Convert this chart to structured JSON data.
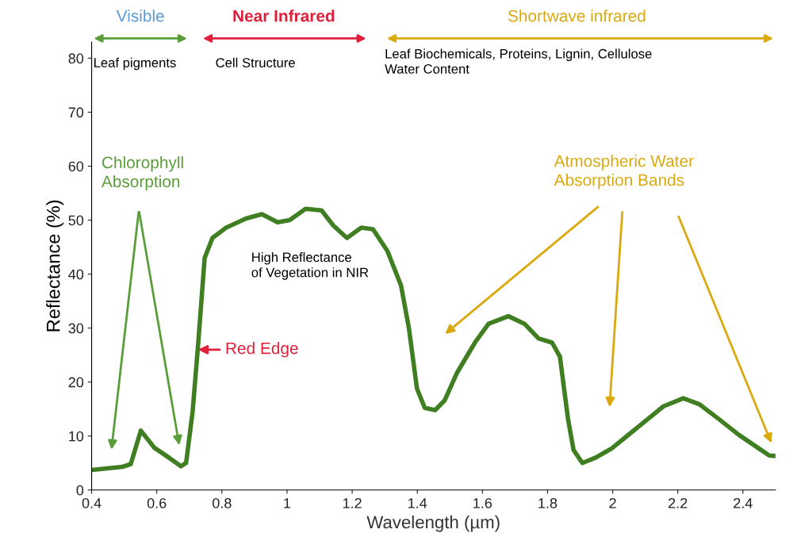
{
  "chart_data": {
    "type": "line",
    "xlabel": "Wavelength (µm)",
    "ylabel": "Reflectance (%)",
    "xlim": [
      0.4,
      2.5
    ],
    "ylim": [
      0,
      83
    ],
    "xticks": [
      0.4,
      0.6,
      0.8,
      1,
      1.2,
      1.4,
      1.6,
      1.8,
      2,
      2.2,
      2.4
    ],
    "yticks": [
      0,
      10,
      20,
      30,
      40,
      50,
      60,
      70,
      80
    ],
    "grid": false,
    "legend": false,
    "marker": "none",
    "line_style": "solid",
    "x": [
      0.4,
      0.495,
      0.52,
      0.551,
      0.593,
      0.63,
      0.674,
      0.69,
      0.71,
      0.727,
      0.747,
      0.771,
      0.813,
      0.874,
      0.923,
      0.971,
      1.008,
      1.057,
      1.106,
      1.142,
      1.184,
      1.228,
      1.264,
      1.308,
      1.35,
      1.374,
      1.399,
      1.423,
      1.455,
      1.484,
      1.521,
      1.577,
      1.619,
      1.68,
      1.729,
      1.772,
      1.814,
      1.838,
      1.863,
      1.88,
      1.907,
      1.948,
      1.997,
      2.046,
      2.107,
      2.156,
      2.217,
      2.266,
      2.327,
      2.388,
      2.449,
      2.481,
      2.5
    ],
    "series": [
      {
        "color": "#3f7f22",
        "values": [
          3.7,
          4.3,
          4.8,
          11,
          7.8,
          6.3,
          4.4,
          5.0,
          14.5,
          27,
          43,
          46.7,
          48.6,
          50.3,
          51.1,
          49.6,
          50,
          52.1,
          51.8,
          49,
          46.7,
          48.6,
          48.3,
          44.3,
          37.9,
          30.1,
          18.8,
          15.2,
          14.8,
          16.6,
          21.6,
          27.3,
          30.8,
          32.2,
          30.8,
          28.1,
          27.3,
          24.7,
          13.1,
          7.4,
          5.0,
          6.0,
          7.7,
          10.1,
          13.1,
          15.5,
          17.0,
          15.9,
          13.1,
          10.2,
          7.7,
          6.4,
          6.3
        ]
      }
    ],
    "annotations": [
      "Visible",
      "Near Infrared",
      "Shortwave infrared",
      "Leaf pigments",
      "Cell Structure",
      "Leaf Biochemicals, Proteins, Lignin, Cellulose\nWater Content",
      "Chlorophyll\nAbsorption",
      {
        "text": "Red Edge",
        "x": 0.72,
        "y": 26
      },
      "High Reflectance\nof Vegetation in NIR",
      "Atmospheric Water\nAbsorption Bands"
    ]
  }
}
